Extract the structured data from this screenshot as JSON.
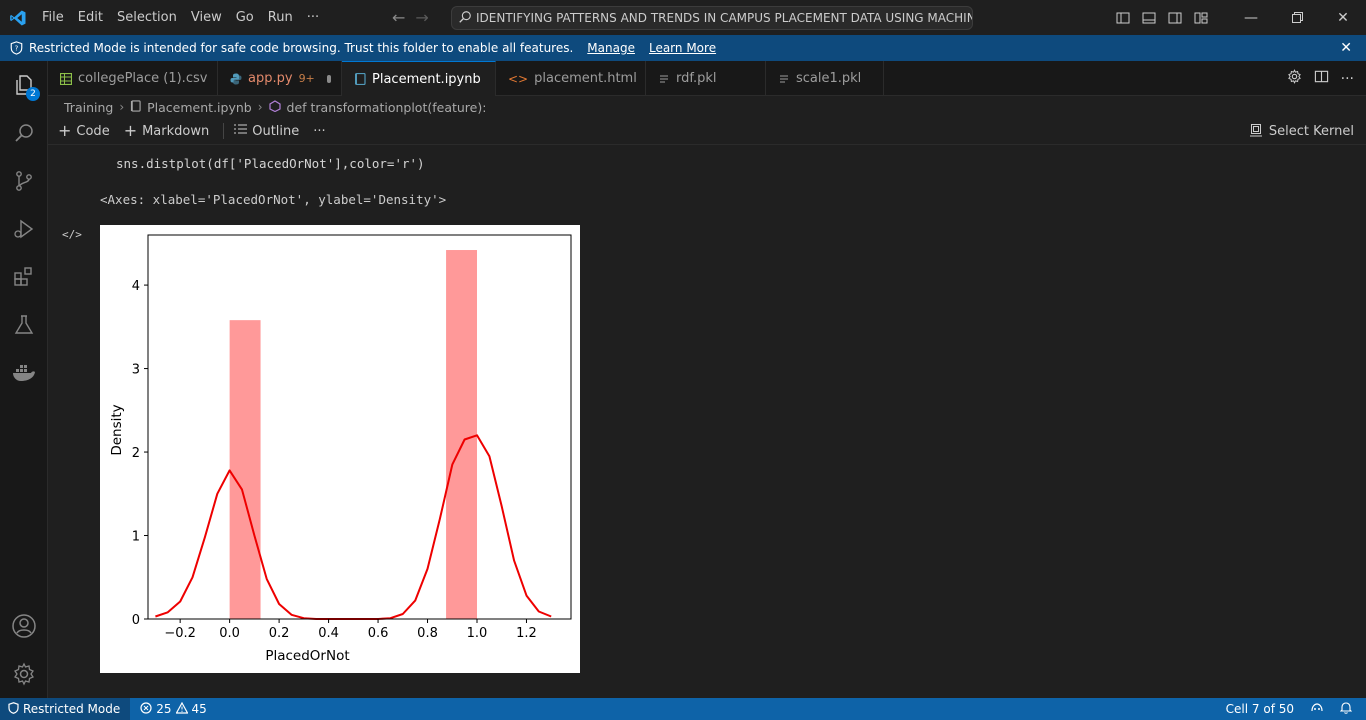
{
  "menu": {
    "items": [
      "File",
      "Edit",
      "Selection",
      "View",
      "Go",
      "Run",
      "···"
    ]
  },
  "command_center": {
    "text": "IDENTIFYING PATTERNS AND TRENDS IN CAMPUS PLACEMENT DATA USING MACHINE LEAR..."
  },
  "banner": {
    "message": "Restricted Mode is intended for safe code browsing. Trust this folder to enable all features.",
    "manage": "Manage",
    "learn_more": "Learn More",
    "close": "✕"
  },
  "activity": {
    "explorer_badge": "2"
  },
  "tabs": [
    {
      "label": "collegePlace (1).csv",
      "icon": "csv-icon"
    },
    {
      "label": "app.py",
      "modifier": "9+",
      "icon": "python-icon"
    },
    {
      "label": "Placement.ipynb",
      "icon": "notebook-icon"
    },
    {
      "label": "placement.html",
      "icon": "html-icon"
    },
    {
      "label": "rdf.pkl",
      "icon": "file-icon"
    },
    {
      "label": "scale1.pkl",
      "icon": "file-icon"
    }
  ],
  "breadcrumb": {
    "folder": "Training",
    "file": "Placement.ipynb",
    "symbol": "def transformationplot(feature):"
  },
  "toolbar": {
    "code": "Code",
    "markdown": "Markdown",
    "outline": "Outline",
    "more": "···",
    "kernel": "Select Kernel"
  },
  "cell": {
    "code": "sns.distplot(df['PlacedOrNot'],color='r')",
    "output_text": "<Axes: xlabel='PlacedOrNot', ylabel='Density'>",
    "output_marker": "</>"
  },
  "chart_data": {
    "type": "bar",
    "title": "",
    "xlabel": "PlacedOrNot",
    "ylabel": "Density",
    "xlim": [
      -0.33,
      1.38
    ],
    "ylim": [
      0,
      4.6
    ],
    "xticks": [
      "−0.2",
      "0.0",
      "0.2",
      "0.4",
      "0.6",
      "0.8",
      "1.0",
      "1.2"
    ],
    "xtick_values": [
      -0.2,
      0.0,
      0.2,
      0.4,
      0.6,
      0.8,
      1.0,
      1.2
    ],
    "yticks": [
      "0",
      "1",
      "2",
      "3",
      "4"
    ],
    "ytick_values": [
      0,
      1,
      2,
      3,
      4
    ],
    "bar_color": "#ff9999",
    "bars": [
      {
        "x0": 0.0,
        "x1": 0.125,
        "value": 3.58
      },
      {
        "x0": 0.875,
        "x1": 1.0,
        "value": 4.42
      }
    ],
    "kde": {
      "color": "#ee0000",
      "x": [
        -0.3,
        -0.25,
        -0.2,
        -0.15,
        -0.1,
        -0.05,
        0.0,
        0.05,
        0.1,
        0.15,
        0.2,
        0.25,
        0.3,
        0.35,
        0.4,
        0.5,
        0.6,
        0.65,
        0.7,
        0.75,
        0.8,
        0.85,
        0.9,
        0.95,
        1.0,
        1.05,
        1.1,
        1.15,
        1.2,
        1.25,
        1.3
      ],
      "y": [
        0.03,
        0.08,
        0.21,
        0.5,
        0.98,
        1.5,
        1.78,
        1.55,
        1.0,
        0.48,
        0.18,
        0.05,
        0.01,
        0.0,
        0.0,
        0.0,
        0.0,
        0.01,
        0.06,
        0.22,
        0.6,
        1.2,
        1.85,
        2.15,
        2.2,
        1.95,
        1.35,
        0.7,
        0.28,
        0.09,
        0.03
      ]
    }
  },
  "status": {
    "mode": "Restricted Mode",
    "errors": "25",
    "warnings": "45",
    "cell": "Cell 7 of 50"
  },
  "colors": {
    "accent": "#0078d4",
    "statusbar": "#0e63a8",
    "banner": "#0e4a7d"
  }
}
